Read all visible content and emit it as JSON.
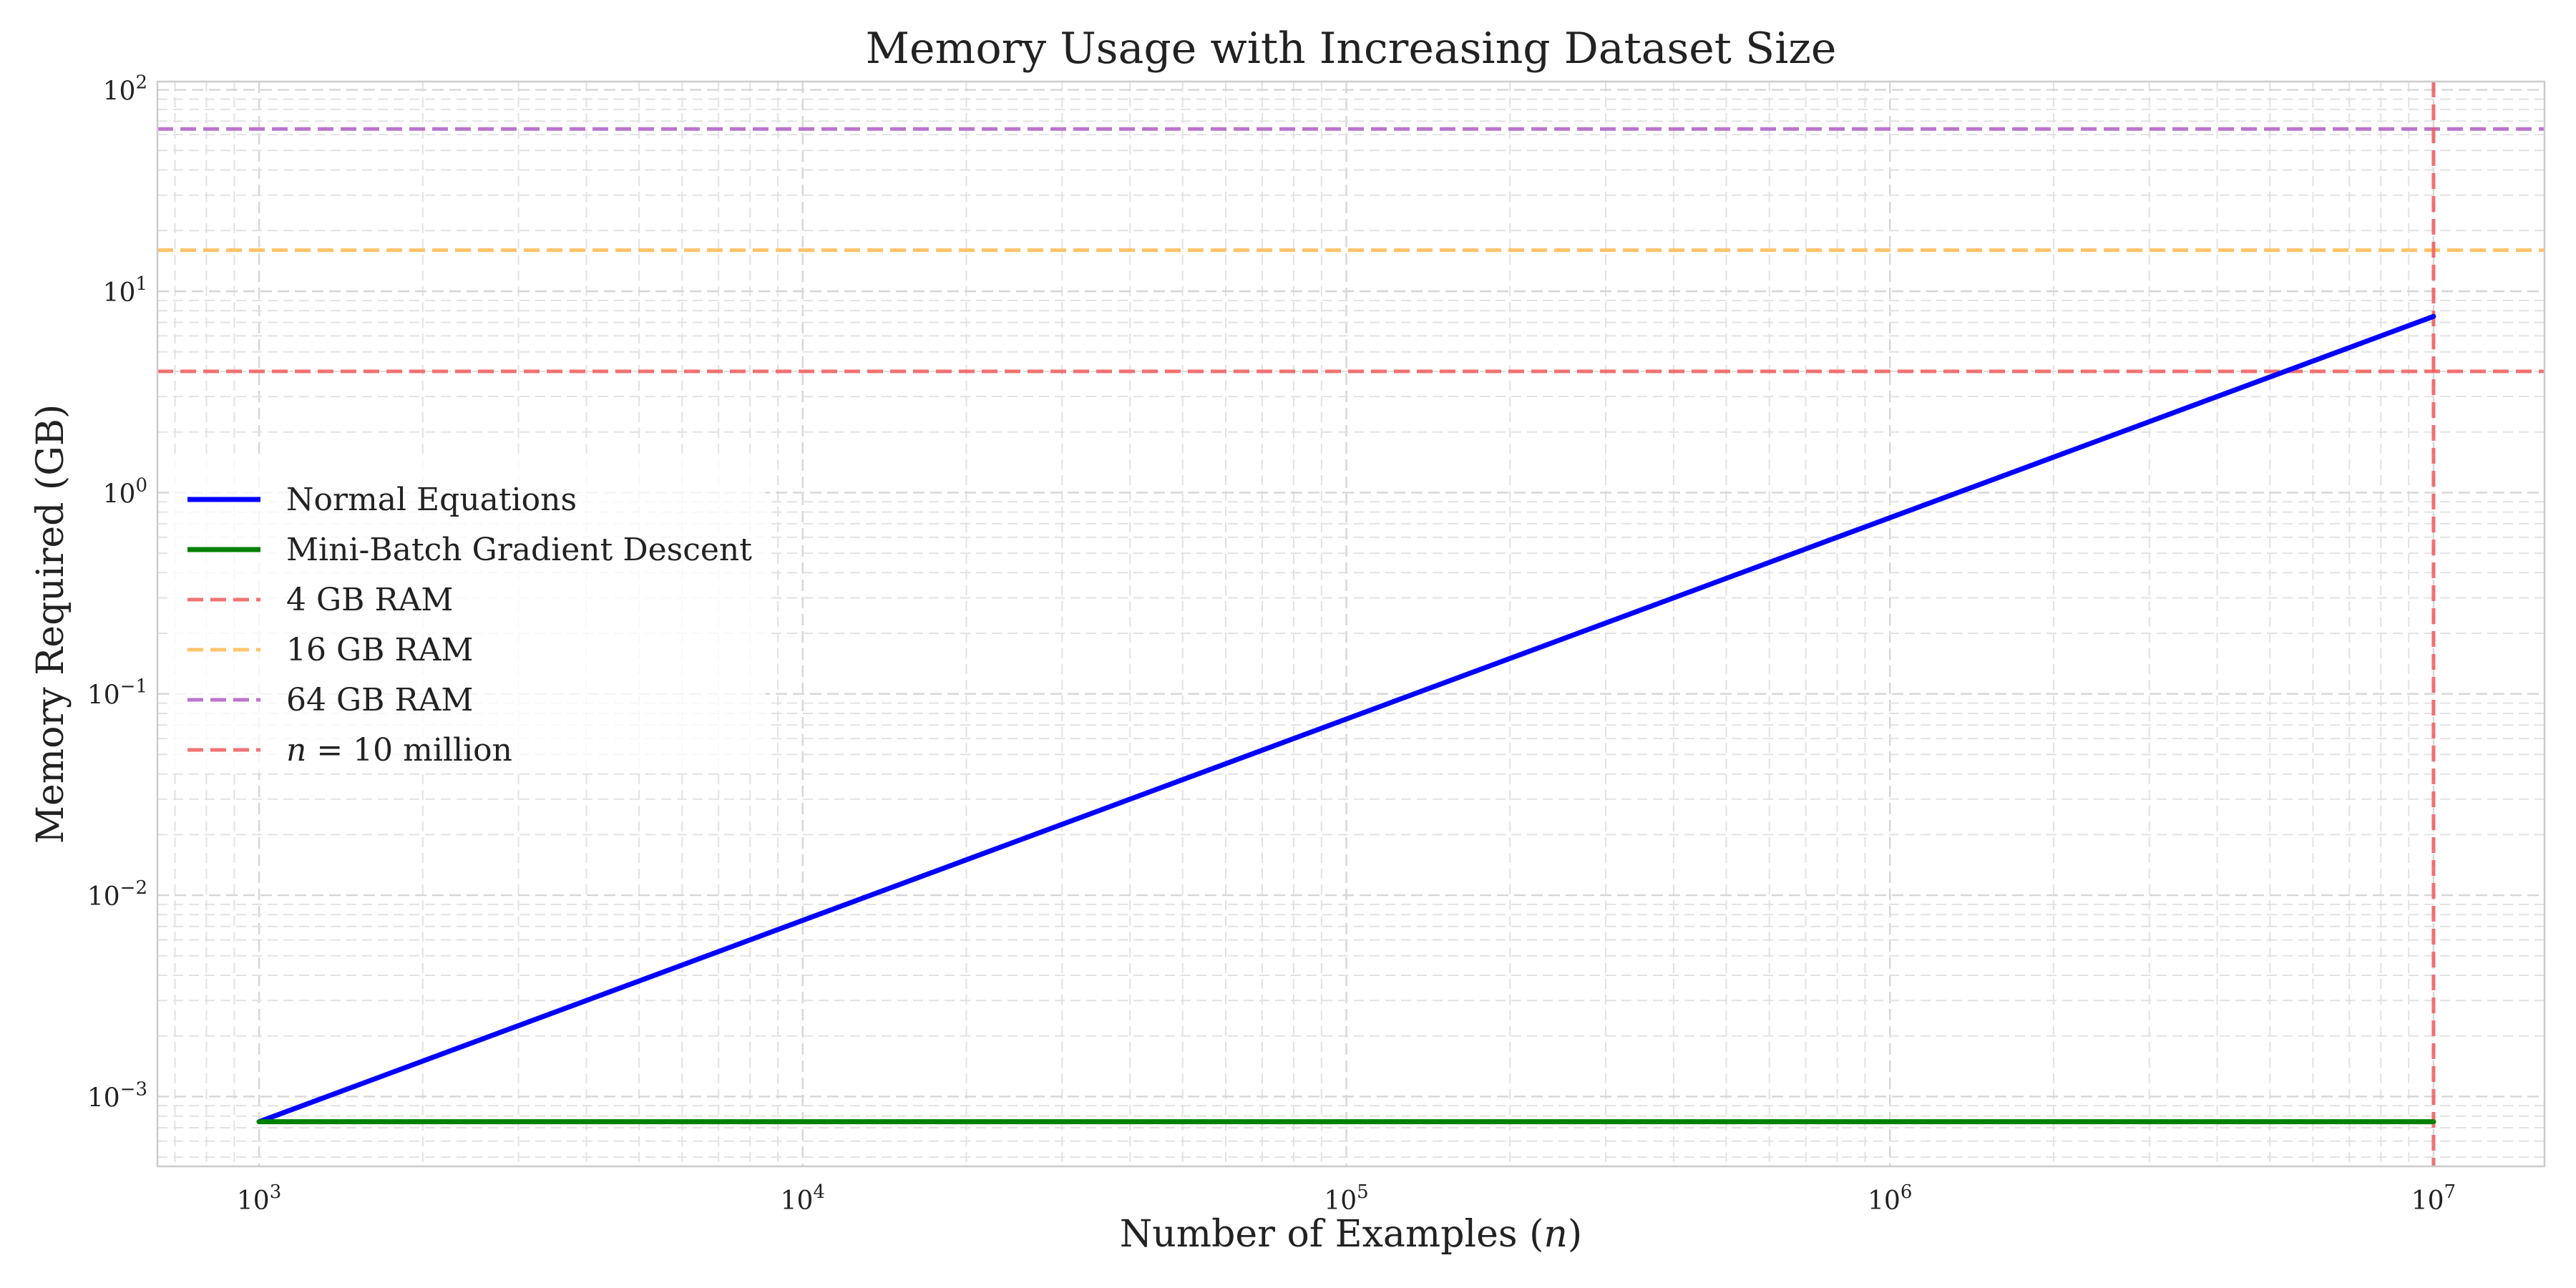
{
  "chart_data": {
    "type": "line",
    "title": "Memory Usage with Increasing Dataset Size",
    "xlabel": "Number of Examples (n)",
    "ylabel": "Memory Required (GB)",
    "xscale": "log",
    "yscale": "log",
    "xlim": [
      650,
      16000000
    ],
    "ylim": [
      0.00045,
      110
    ],
    "x_ticks": [
      {
        "value": 1000,
        "base": "10",
        "exp": "3"
      },
      {
        "value": 10000,
        "base": "10",
        "exp": "4"
      },
      {
        "value": 100000,
        "base": "10",
        "exp": "5"
      },
      {
        "value": 1000000,
        "base": "10",
        "exp": "6"
      },
      {
        "value": 10000000,
        "base": "10",
        "exp": "7"
      }
    ],
    "y_ticks": [
      {
        "value": 0.001,
        "base": "10",
        "exp": "−3"
      },
      {
        "value": 0.01,
        "base": "10",
        "exp": "−2"
      },
      {
        "value": 0.1,
        "base": "10",
        "exp": "−1"
      },
      {
        "value": 1,
        "base": "10",
        "exp": "0"
      },
      {
        "value": 10,
        "base": "10",
        "exp": "1"
      },
      {
        "value": 100,
        "base": "10",
        "exp": "2"
      }
    ],
    "grid": true,
    "legend_position": "center-left",
    "series": [
      {
        "name": "Normal Equations",
        "color": "#0000ff",
        "style": "solid",
        "x": [
          1000,
          10000000
        ],
        "y": [
          0.00075,
          7.5
        ]
      },
      {
        "name": "Mini-Batch Gradient Descent",
        "color": "#008000",
        "style": "solid",
        "x": [
          1000,
          10000000
        ],
        "y": [
          0.00075,
          0.00075
        ]
      }
    ],
    "hlines": [
      {
        "name": "4 GB RAM",
        "y": 4,
        "color": "#f05a5a"
      },
      {
        "name": "16 GB RAM",
        "y": 16,
        "color": "#ffb84d"
      },
      {
        "name": "64 GB RAM",
        "y": 64,
        "color": "#b05cc6"
      }
    ],
    "vlines": [
      {
        "name": "n = 10 million",
        "x": 10000000,
        "color": "#f05a5a"
      }
    ]
  }
}
